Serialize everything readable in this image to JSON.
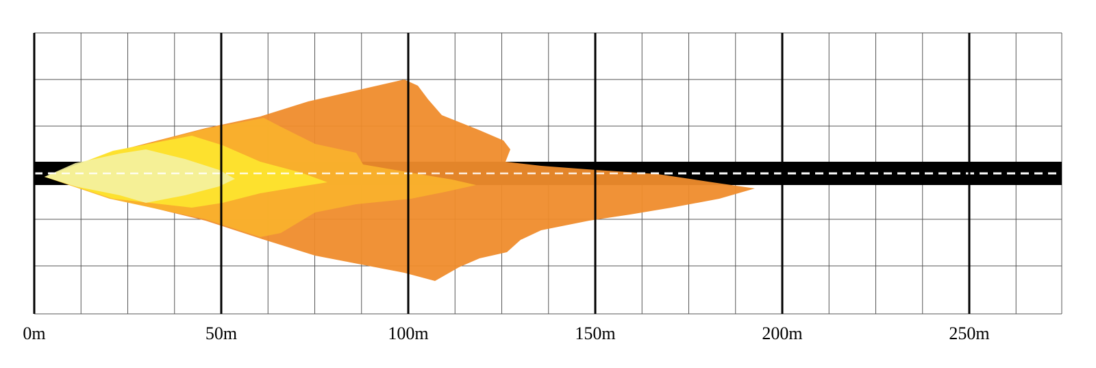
{
  "diagram": {
    "x_axis": {
      "unit": "m",
      "range": [
        0,
        275
      ],
      "tick_labels": [
        "0m",
        "50m",
        "100m",
        "150m",
        "200m",
        "250m"
      ],
      "major_step": 50,
      "minor_step": 12.5
    },
    "colors": {
      "road": "#000000",
      "lane_marking": "#ffffff",
      "grid_minor": "#555555",
      "grid_major": "#000000",
      "zone_far": "#ef8c2c",
      "zone_mid": "#f9b12c",
      "zone_near": "#fde42e",
      "zone_close": "#f4f2a2"
    },
    "zones": [
      {
        "id": "far",
        "reach_m": 192
      },
      {
        "id": "mid",
        "reach_m": 118
      },
      {
        "id": "near",
        "reach_m": 78
      },
      {
        "id": "close",
        "reach_m": 54
      }
    ]
  }
}
